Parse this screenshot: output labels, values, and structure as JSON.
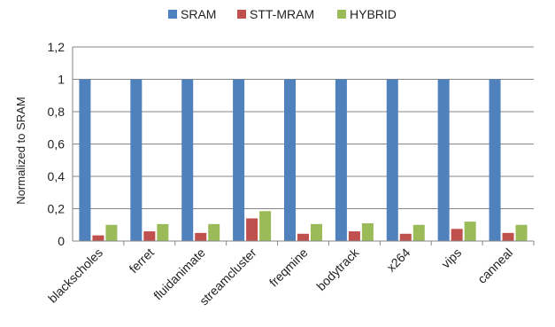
{
  "chart_data": {
    "type": "bar",
    "title": "",
    "xlabel": "",
    "ylabel": "Normalized to SRAM",
    "ylim": [
      0,
      1.2
    ],
    "yticks": [
      0,
      0.2,
      0.4,
      0.6,
      0.8,
      1,
      1.2
    ],
    "ytick_labels": [
      "0",
      "0,2",
      "0,4",
      "0,6",
      "0,8",
      "1",
      "1,2"
    ],
    "grid": "horizontal",
    "legend_position": "top",
    "categories": [
      "blackscholes",
      "ferret",
      "fluidanimate",
      "streamcluster",
      "freqmine",
      "bodytrack",
      "x264",
      "vips",
      "canneal"
    ],
    "series": [
      {
        "name": "SRAM",
        "color": "#4F81BD",
        "values": [
          1,
          1,
          1,
          1,
          1,
          1,
          1,
          1,
          1
        ]
      },
      {
        "name": "STT-MRAM",
        "color": "#C0504D",
        "values": [
          0.035,
          0.06,
          0.05,
          0.14,
          0.045,
          0.06,
          0.045,
          0.075,
          0.05
        ]
      },
      {
        "name": "HYBRID",
        "color": "#9BBB59",
        "values": [
          0.1,
          0.105,
          0.105,
          0.185,
          0.105,
          0.11,
          0.1,
          0.12,
          0.1
        ]
      }
    ]
  }
}
